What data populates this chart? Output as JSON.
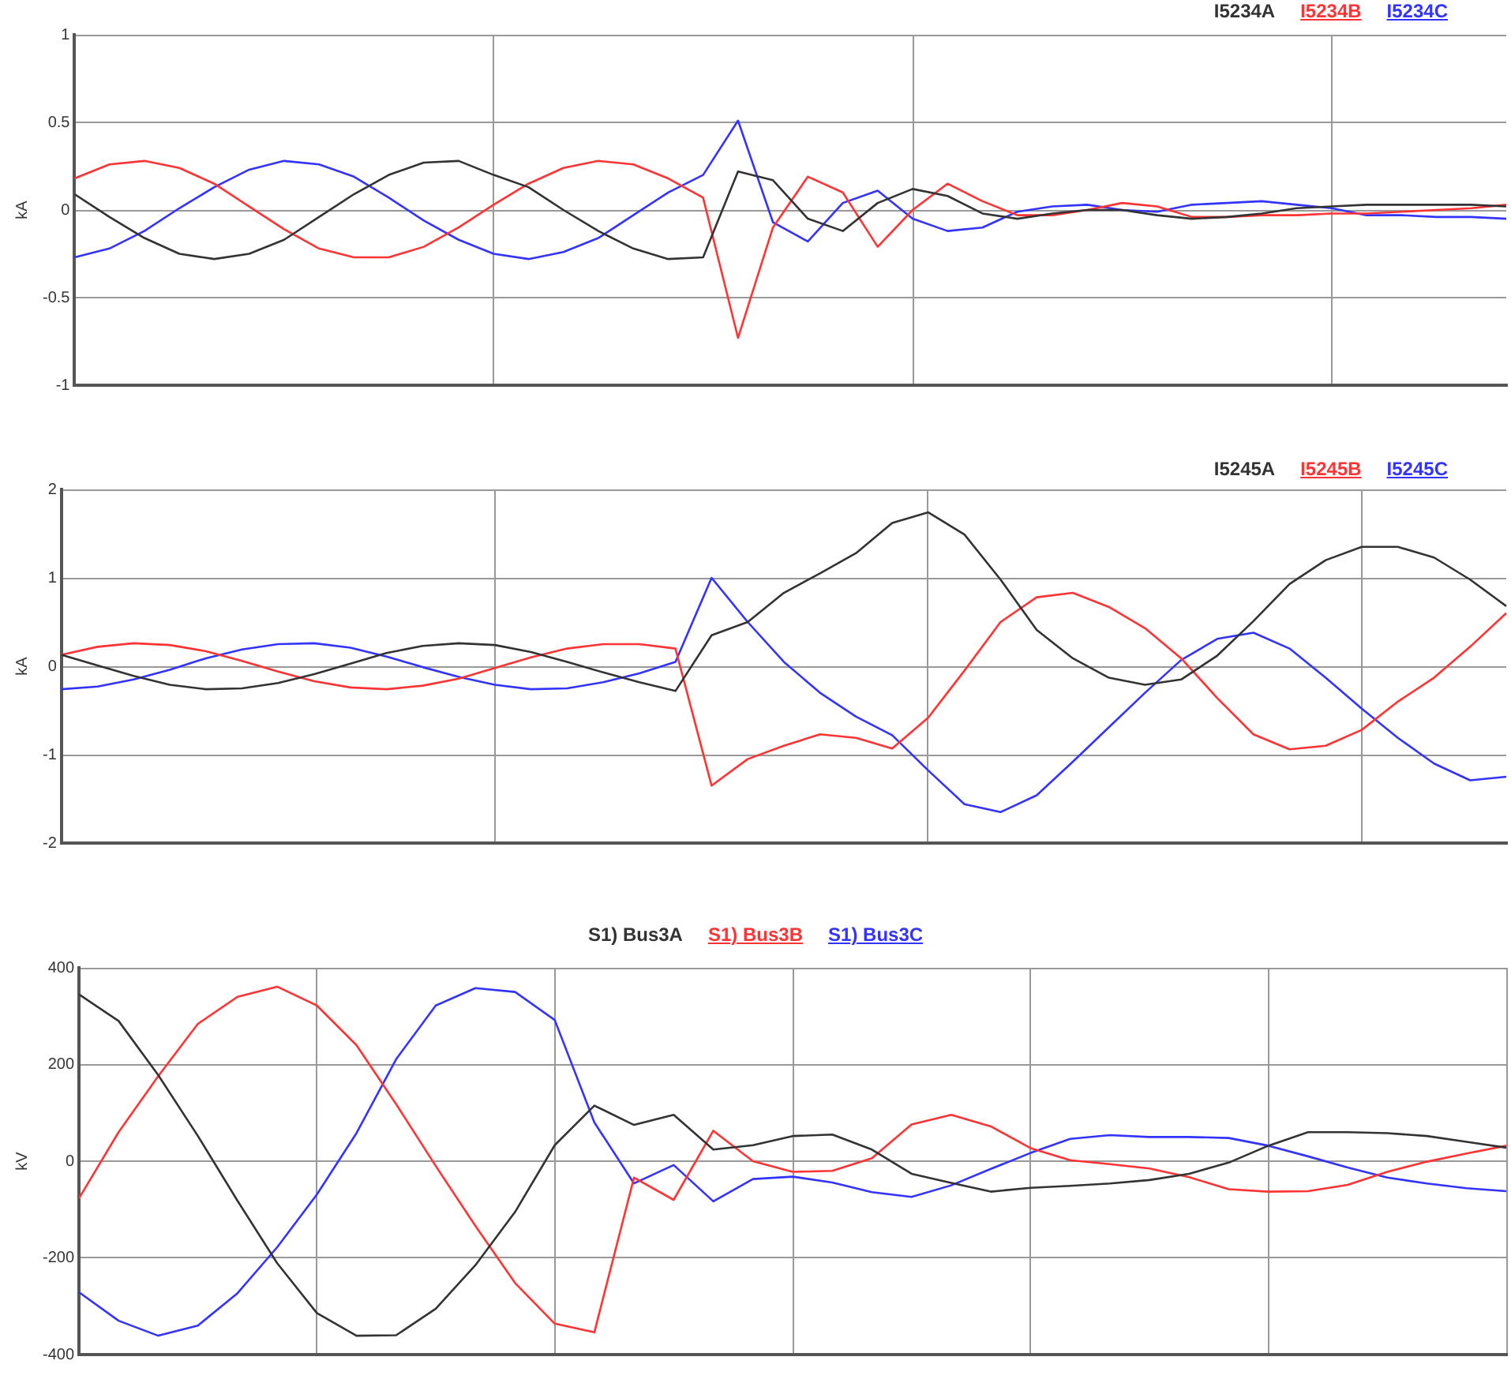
{
  "chart_data": [
    {
      "type": "line",
      "ylabel": "kA",
      "categories": [
        null,
        null,
        null,
        null,
        null,
        null,
        null,
        null,
        null,
        null,
        null,
        null,
        null,
        null,
        null,
        null,
        null,
        null,
        null,
        null,
        null,
        null,
        null,
        null,
        null,
        null,
        null,
        null,
        null,
        null,
        null,
        null,
        null,
        null,
        null,
        null,
        null,
        null,
        null,
        null,
        null,
        null
      ],
      "ylim": [
        -1,
        1
      ],
      "yticks": [
        -1,
        -0.5,
        0,
        0.5,
        1
      ],
      "grid": true,
      "legend": "top right",
      "marker": "none",
      "line_style": "solid",
      "series": [
        {
          "name": "I5234A",
          "color": "#333333",
          "values": [
            0.09,
            -0.04,
            -0.16,
            -0.25,
            -0.28,
            -0.25,
            -0.17,
            -0.04,
            0.09,
            0.2,
            0.27,
            0.28,
            0.2,
            0.13,
            0.0,
            -0.12,
            -0.22,
            -0.28,
            -0.27,
            0.22,
            0.17,
            -0.05,
            -0.12,
            0.04,
            0.12,
            0.08,
            -0.02,
            -0.05,
            -0.02,
            0.0,
            0.0,
            -0.03,
            -0.05,
            -0.04,
            -0.02,
            0.01,
            0.02,
            0.03,
            0.03,
            0.03,
            0.03,
            0.02
          ]
        },
        {
          "name": "I5234B",
          "color": "#ff3333",
          "values": [
            0.18,
            0.26,
            0.28,
            0.24,
            0.15,
            0.02,
            -0.11,
            -0.22,
            -0.27,
            -0.27,
            -0.21,
            -0.1,
            0.03,
            0.15,
            0.24,
            0.28,
            0.26,
            0.18,
            0.07,
            -0.73,
            -0.1,
            0.19,
            0.1,
            -0.21,
            0.0,
            0.15,
            0.05,
            -0.03,
            -0.03,
            0.0,
            0.04,
            0.02,
            -0.04,
            -0.04,
            -0.03,
            -0.03,
            -0.02,
            -0.02,
            -0.01,
            0.0,
            0.01,
            0.03
          ]
        },
        {
          "name": "I5234C",
          "color": "#3333ff",
          "values": [
            -0.27,
            -0.22,
            -0.12,
            0.01,
            0.13,
            0.23,
            0.28,
            0.26,
            0.19,
            0.07,
            -0.06,
            -0.17,
            -0.25,
            -0.28,
            -0.24,
            -0.16,
            -0.03,
            0.1,
            0.2,
            0.51,
            -0.07,
            -0.18,
            0.04,
            0.11,
            -0.05,
            -0.12,
            -0.1,
            -0.01,
            0.02,
            0.03,
            0.0,
            -0.01,
            0.03,
            0.04,
            0.05,
            0.03,
            0.01,
            -0.03,
            -0.03,
            -0.04,
            -0.04,
            -0.05
          ]
        }
      ]
    },
    {
      "type": "line",
      "ylabel": "kA",
      "categories": [
        null,
        null,
        null,
        null,
        null,
        null,
        null,
        null,
        null,
        null,
        null,
        null,
        null,
        null,
        null,
        null,
        null,
        null,
        null,
        null,
        null,
        null,
        null,
        null,
        null,
        null,
        null,
        null,
        null,
        null,
        null,
        null,
        null,
        null,
        null,
        null,
        null,
        null,
        null,
        null,
        null
      ],
      "ylim": [
        -2,
        2
      ],
      "yticks": [
        -2,
        -1,
        0,
        1,
        2
      ],
      "grid": true,
      "legend": "top right",
      "marker": "none",
      "line_style": "solid",
      "series": [
        {
          "name": "I5245A",
          "color": "#333333",
          "values": [
            0.13,
            0.01,
            -0.11,
            -0.21,
            -0.26,
            -0.25,
            -0.19,
            -0.09,
            0.03,
            0.15,
            0.23,
            0.26,
            0.24,
            0.16,
            0.05,
            -0.07,
            -0.18,
            -0.28,
            0.35,
            0.5,
            0.83,
            1.05,
            1.28,
            1.62,
            1.74,
            1.49,
            0.98,
            0.41,
            0.09,
            -0.13,
            -0.21,
            -0.15,
            0.12,
            0.51,
            0.93,
            1.2,
            1.35,
            1.35,
            1.23,
            0.98,
            0.68
          ]
        },
        {
          "name": "I5245B",
          "color": "#ff3333",
          "values": [
            0.13,
            0.22,
            0.26,
            0.24,
            0.17,
            0.06,
            -0.06,
            -0.17,
            -0.24,
            -0.26,
            -0.22,
            -0.14,
            -0.02,
            0.1,
            0.2,
            0.25,
            0.25,
            0.2,
            -1.35,
            -1.05,
            -0.9,
            -0.77,
            -0.81,
            -0.93,
            -0.58,
            -0.05,
            0.5,
            0.78,
            0.83,
            0.67,
            0.43,
            0.09,
            -0.36,
            -0.77,
            -0.94,
            -0.9,
            -0.72,
            -0.4,
            -0.13,
            0.22,
            0.6
          ]
        },
        {
          "name": "I5245C",
          "color": "#3333ff",
          "values": [
            -0.26,
            -0.23,
            -0.15,
            -0.04,
            0.09,
            0.19,
            0.25,
            0.26,
            0.21,
            0.11,
            -0.01,
            -0.12,
            -0.21,
            -0.26,
            -0.25,
            -0.18,
            -0.08,
            0.05,
            1.0,
            0.5,
            0.05,
            -0.3,
            -0.57,
            -0.78,
            -1.18,
            -1.56,
            -1.65,
            -1.46,
            -1.08,
            -0.69,
            -0.3,
            0.07,
            0.31,
            0.38,
            0.2,
            -0.13,
            -0.48,
            -0.81,
            -1.1,
            -1.29,
            -1.25
          ]
        }
      ]
    },
    {
      "type": "line",
      "ylabel": "kV",
      "categories": [
        null,
        null,
        null,
        null,
        null,
        null,
        null,
        null,
        null,
        null,
        null,
        null,
        null,
        null,
        null,
        null,
        null,
        null,
        null,
        null,
        null,
        null,
        null,
        null,
        null,
        null,
        null,
        null,
        null,
        null,
        null,
        null,
        null,
        null,
        null,
        null,
        null
      ],
      "ylim": [
        -400,
        400
      ],
      "yticks": [
        -400,
        -200,
        0,
        200,
        400
      ],
      "grid": true,
      "legend": "top",
      "marker": "none",
      "line_style": "solid",
      "series": [
        {
          "name": "S1) Bus3A",
          "color": "#333333",
          "values": [
            345,
            290,
            178,
            52,
            -82,
            -211,
            -314,
            -361,
            -360,
            -305,
            -215,
            -105,
            33,
            115,
            75,
            96,
            24,
            33,
            52,
            55,
            24,
            -26,
            -45,
            -63,
            -55,
            -51,
            -46,
            -39,
            -26,
            -3,
            32,
            60,
            60,
            58,
            52,
            40,
            28
          ]
        },
        {
          "name": "S1) Bus3B",
          "color": "#ff3333",
          "values": [
            -77,
            60,
            176,
            284,
            340,
            361,
            322,
            240,
            118,
            -10,
            -134,
            -252,
            -336,
            -354,
            -34,
            -80,
            63,
            0,
            -22,
            -20,
            6,
            76,
            96,
            72,
            27,
            2,
            -6,
            -15,
            -33,
            -58,
            -63,
            -62,
            -49,
            -22,
            -1,
            16,
            32
          ]
        },
        {
          "name": "S1) Bus3C",
          "color": "#3333ff",
          "values": [
            -271,
            -330,
            -361,
            -340,
            -273,
            -178,
            -69,
            58,
            211,
            322,
            358,
            350,
            292,
            80,
            -46,
            -8,
            -83,
            -37,
            -32,
            -44,
            -64,
            -74,
            -50,
            -16,
            17,
            46,
            54,
            50,
            50,
            48,
            32,
            10,
            -13,
            -34,
            -46,
            -56,
            -62
          ]
        }
      ]
    }
  ]
}
